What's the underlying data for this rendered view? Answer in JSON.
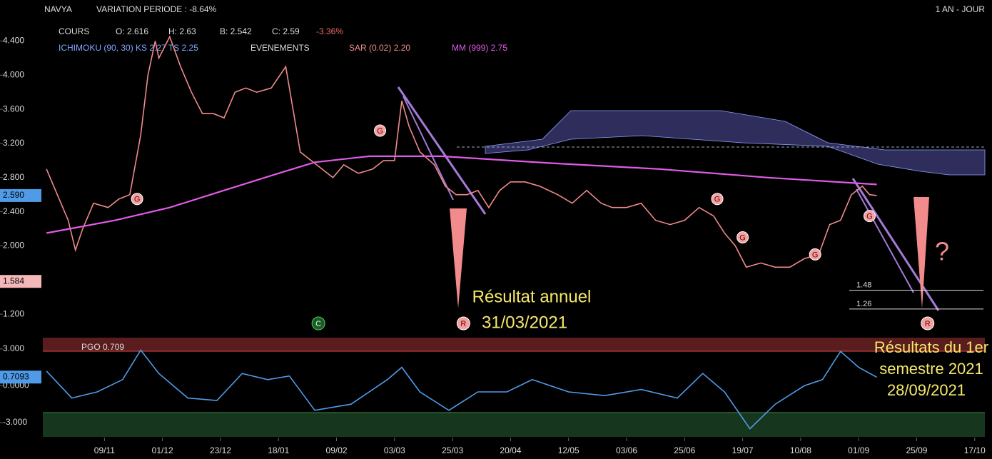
{
  "header": {
    "symbol": "NAVYA",
    "variation": "VARIATION PERIODE : -8.64%",
    "period": "1 AN - JOUR"
  },
  "legend": {
    "cours": "COURS",
    "open": "O: 2.616",
    "high": "H: 2.63",
    "low": "B: 2.542",
    "close": "C: 2.59",
    "change": "-3.36%",
    "ichimoku": "ICHIMOKU (90, 30) KS 2.27 TS 2.25",
    "events": "EVENEMENTS",
    "sar": "SAR (0.02) 2.20",
    "mm": "MM (999) 2.75"
  },
  "annotations": {
    "annual_1": "Résultat annuel",
    "annual_2": "31/03/2021",
    "half_1": "Résultats du 1er",
    "half_2": "semestre 2021",
    "half_3": "28/09/2021",
    "question": "?"
  },
  "chart_data": [
    {
      "type": "line",
      "xlim": [
        0,
        260
      ],
      "xticks": [
        {
          "value": 17,
          "label": "09/11"
        },
        {
          "value": 33,
          "label": "01/12"
        },
        {
          "value": 49,
          "label": "23/12"
        },
        {
          "value": 65,
          "label": "18/01"
        },
        {
          "value": 81,
          "label": "09/02"
        },
        {
          "value": 97,
          "label": "03/03"
        },
        {
          "value": 113,
          "label": "25/03"
        },
        {
          "value": 129,
          "label": "20/04"
        },
        {
          "value": 145,
          "label": "12/05"
        },
        {
          "value": 161,
          "label": "03/06"
        },
        {
          "value": 177,
          "label": "25/06"
        },
        {
          "value": 193,
          "label": "19/07"
        },
        {
          "value": 209,
          "label": "10/08"
        },
        {
          "value": 225,
          "label": "01/09"
        },
        {
          "value": 241,
          "label": "25/09"
        },
        {
          "value": 257,
          "label": "17/10"
        }
      ],
      "ylim": [
        0.95,
        4.63
      ],
      "yticks": [
        {
          "value": 1.2,
          "label": "1.200"
        },
        {
          "value": 2,
          "label": "2.000"
        },
        {
          "value": 2.4,
          "label": "2.400"
        },
        {
          "value": 2.8,
          "label": "2.800"
        },
        {
          "value": 3.2,
          "label": "3.200"
        },
        {
          "value": 3.6,
          "label": "3.600"
        },
        {
          "value": 4,
          "label": "4.000"
        },
        {
          "value": 4.4,
          "label": "4.400"
        }
      ],
      "series": [
        {
          "name": "COURS",
          "color": "#f08a8a",
          "x": [
            1,
            4,
            7,
            9,
            11,
            14,
            18,
            21,
            24,
            27,
            29,
            31,
            32,
            35,
            38,
            41,
            44,
            47,
            50,
            53,
            56,
            59,
            63,
            67,
            69,
            71,
            74,
            77,
            80,
            83,
            87,
            91,
            94,
            97,
            99,
            101,
            104,
            108,
            111,
            114,
            117,
            120,
            123,
            126,
            129,
            133,
            137,
            142,
            146,
            150,
            154,
            157,
            161,
            165,
            169,
            173,
            177,
            181,
            185,
            188,
            191,
            194,
            198,
            202,
            206,
            210,
            214,
            217,
            220,
            223,
            226,
            228,
            230
          ],
          "values": [
            2.9,
            2.6,
            2.3,
            1.95,
            2.2,
            2.5,
            2.45,
            2.55,
            2.6,
            3.3,
            4.0,
            4.4,
            4.2,
            4.45,
            4.1,
            3.8,
            3.55,
            3.55,
            3.5,
            3.8,
            3.85,
            3.8,
            3.85,
            4.1,
            3.6,
            3.1,
            3.0,
            2.9,
            2.8,
            2.95,
            2.85,
            2.9,
            3.0,
            3.0,
            3.7,
            3.4,
            3.1,
            2.95,
            2.7,
            2.6,
            2.6,
            2.65,
            2.45,
            2.65,
            2.75,
            2.75,
            2.7,
            2.6,
            2.5,
            2.65,
            2.5,
            2.45,
            2.45,
            2.5,
            2.3,
            2.25,
            2.3,
            2.45,
            2.35,
            2.15,
            2.0,
            1.75,
            1.8,
            1.75,
            1.75,
            1.85,
            1.9,
            2.25,
            2.3,
            2.6,
            2.7,
            2.6,
            2.59
          ]
        },
        {
          "name": "MM (999)",
          "color": "#e05ce6",
          "x": [
            1,
            20,
            35,
            50,
            65,
            75,
            90,
            110,
            140,
            170,
            200,
            230
          ],
          "values": [
            2.15,
            2.3,
            2.45,
            2.65,
            2.85,
            2.98,
            3.05,
            3.05,
            2.97,
            2.9,
            2.8,
            2.72
          ]
        }
      ],
      "price_tags": [
        {
          "value": 2.59,
          "label": "2.590"
        },
        {
          "value": 1.584,
          "label": "1.584"
        }
      ],
      "levels": [
        1.48,
        1.26
      ],
      "signals": [
        {
          "label": "G",
          "x": 93,
          "y": 3.35
        },
        {
          "label": "G",
          "x": 186,
          "y": 2.55
        },
        {
          "label": "G",
          "x": 193,
          "y": 2.1
        },
        {
          "label": "G",
          "x": 213,
          "y": 1.9
        },
        {
          "label": "G",
          "x": 228,
          "y": 2.35
        },
        {
          "label": "G",
          "x": 26,
          "y": 2.55
        }
      ],
      "events": [
        {
          "label": "C",
          "x": 76
        },
        {
          "label": "R",
          "x": 116
        },
        {
          "label": "R",
          "x": 244
        }
      ]
    },
    {
      "type": "line",
      "title": "PGO 0.709",
      "xlim": [
        0,
        260
      ],
      "ylim": [
        -4.16,
        3.92
      ],
      "yticks": [
        {
          "value": -3,
          "label": "-3.000"
        },
        {
          "value": 0,
          "label": "0.0000"
        },
        {
          "value": 3,
          "label": "3.000"
        }
      ],
      "price_tags": [
        {
          "value": 0.7093,
          "label": "0.7093"
        }
      ],
      "series": [
        {
          "name": "PGO",
          "color": "#4f9be8",
          "x": [
            1,
            8,
            15,
            22,
            27,
            32,
            40,
            48,
            55,
            62,
            68,
            75,
            85,
            95,
            99,
            104,
            112,
            120,
            128,
            135,
            145,
            155,
            165,
            175,
            182,
            188,
            195,
            202,
            210,
            215,
            220,
            225,
            230
          ],
          "values": [
            1.2,
            -1.0,
            -0.5,
            0.5,
            2.9,
            1.0,
            -1.0,
            -1.2,
            1.0,
            0.5,
            0.8,
            -2.0,
            -1.5,
            0.5,
            1.5,
            -0.5,
            -2.0,
            -0.5,
            -0.5,
            0.5,
            -0.5,
            -0.8,
            -0.3,
            -1.0,
            1.0,
            -0.5,
            -3.5,
            -1.5,
            0.0,
            0.5,
            2.8,
            1.5,
            0.7
          ]
        }
      ]
    }
  ]
}
